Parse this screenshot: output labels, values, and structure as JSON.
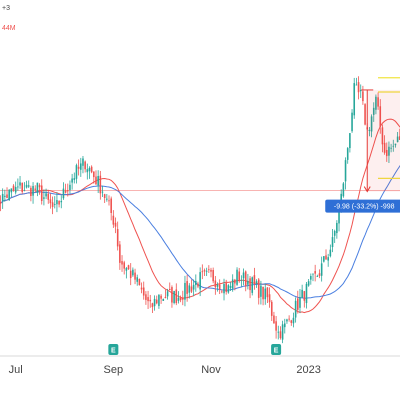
{
  "header": {
    "line1": "+3",
    "line2": "44M"
  },
  "colors": {
    "up": "#26a69a",
    "down": "#ef5350",
    "ma_fast": "#ef5350",
    "ma_slow": "#4a7fe0",
    "measure": "#e53935",
    "measure_label_bg": "#2f6fd6",
    "fib": "#f0e442",
    "earnings": "#26a69a"
  },
  "chart_data": {
    "type": "candlestick",
    "x_ticks": [
      "Jul",
      "Sep",
      "Nov",
      "2023"
    ],
    "x_ticks_at_day": [
      10,
      55,
      100,
      145
    ],
    "earnings_markers": [
      {
        "label": "E",
        "day": 55
      },
      {
        "label": "E",
        "day": 130
      }
    ],
    "measure": {
      "label": "-9.98 (-33.2%) -998",
      "from_price": 30.1,
      "to_price": 20.1,
      "day": 172
    },
    "fib_levels": [
      31.3,
      29.9,
      21.4
    ],
    "reference_level": 20.2,
    "price_range": [
      5,
      36
    ],
    "grid": false,
    "legend": "none"
  }
}
